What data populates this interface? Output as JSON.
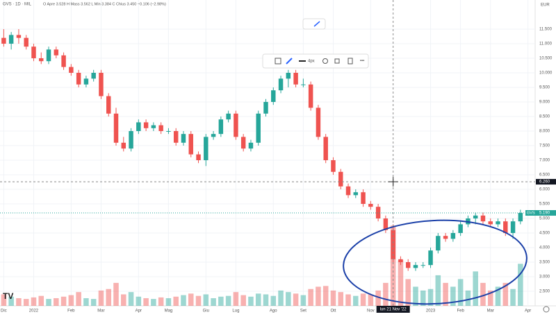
{
  "chart_data": {
    "type": "candlestick",
    "header": {
      "ticker": "GVS · 1D · MIL",
      "ohlc_text": "O Apre 3.528 H Mass 3.562 L Min 3.384 C Chius 3.450 −0.106 (−2.98%)"
    },
    "currency": "EUR",
    "toolbar": {
      "line_width": "4px"
    },
    "up_color": "#26a69a",
    "down_color": "#ef5350",
    "categories": [
      "Dic",
      null,
      null,
      null,
      "2022",
      null,
      null,
      null,
      null,
      "Feb",
      null,
      null,
      null,
      "Mar",
      null,
      null,
      null,
      null,
      "Apr",
      null,
      null,
      null,
      "Mag",
      null,
      null,
      null,
      null,
      "Giu",
      null,
      null,
      null,
      "Lug",
      null,
      null,
      null,
      null,
      "Ago",
      null,
      null,
      null,
      "Set",
      null,
      null,
      null,
      "Ott",
      null,
      null,
      null,
      null,
      "Nov",
      null,
      null,
      null,
      null,
      null,
      null,
      null,
      "2023",
      null,
      null,
      null,
      "Feb",
      null,
      null,
      null,
      "Mar",
      null,
      null,
      null,
      null,
      "Apr"
    ],
    "open": [
      11.2,
      11.0,
      11.3,
      11.2,
      10.9,
      10.5,
      10.4,
      10.8,
      10.6,
      10.2,
      10.0,
      9.6,
      9.8,
      10.0,
      9.2,
      8.6,
      7.6,
      7.4,
      8.0,
      8.3,
      8.1,
      8.2,
      8.0,
      8.0,
      7.6,
      7.9,
      7.2,
      7.0,
      7.8,
      7.9,
      8.4,
      8.6,
      7.8,
      7.4,
      7.6,
      8.6,
      9.0,
      9.4,
      9.8,
      10.0,
      9.6,
      9.6,
      8.8,
      7.8,
      7.0,
      6.6,
      6.1,
      5.8,
      5.9,
      5.5,
      5.4,
      5.0,
      4.6,
      3.6,
      3.5,
      3.3,
      3.4,
      3.4,
      3.9,
      4.4,
      4.3,
      4.5,
      4.8,
      5.0,
      5.1,
      4.9,
      4.8,
      4.9,
      4.5,
      4.9,
      null
    ],
    "high": [
      11.5,
      11.4,
      11.5,
      11.3,
      11.0,
      10.7,
      10.9,
      10.9,
      10.7,
      10.3,
      10.1,
      9.9,
      10.1,
      10.1,
      9.3,
      8.8,
      7.8,
      8.1,
      8.4,
      8.4,
      8.3,
      8.3,
      8.1,
      8.1,
      8.0,
      8.0,
      7.3,
      7.9,
      8.0,
      8.5,
      8.7,
      8.7,
      7.9,
      7.7,
      8.7,
      9.1,
      9.5,
      9.9,
      10.1,
      10.1,
      9.8,
      9.7,
      8.9,
      7.9,
      7.1,
      6.7,
      6.2,
      6.0,
      6.0,
      5.6,
      5.5,
      5.1,
      4.8,
      3.7,
      3.6,
      3.5,
      3.5,
      4.0,
      4.5,
      4.5,
      4.6,
      4.9,
      5.1,
      5.2,
      5.2,
      5.0,
      5.0,
      5.0,
      5.0,
      5.3,
      null
    ],
    "low": [
      10.9,
      10.8,
      11.0,
      10.8,
      10.4,
      10.3,
      10.3,
      10.5,
      10.1,
      9.9,
      9.5,
      9.5,
      9.7,
      9.1,
      8.5,
      7.5,
      7.3,
      7.3,
      7.9,
      8.0,
      8.0,
      7.9,
      7.9,
      7.5,
      7.5,
      7.1,
      6.9,
      6.8,
      7.7,
      7.8,
      8.3,
      7.7,
      7.3,
      7.3,
      7.5,
      8.5,
      8.9,
      9.3,
      9.5,
      9.5,
      9.5,
      8.7,
      7.7,
      6.9,
      6.5,
      6.0,
      5.7,
      5.7,
      5.4,
      5.3,
      4.9,
      4.5,
      3.5,
      3.4,
      3.2,
      3.2,
      3.3,
      3.3,
      3.8,
      4.2,
      4.2,
      4.4,
      4.7,
      4.8,
      4.8,
      4.7,
      4.7,
      4.4,
      4.3,
      4.8,
      null
    ],
    "close": [
      11.0,
      11.3,
      11.2,
      10.9,
      10.5,
      10.4,
      10.8,
      10.6,
      10.2,
      10.0,
      9.6,
      9.8,
      10.0,
      9.2,
      8.6,
      7.6,
      7.4,
      8.0,
      8.3,
      8.1,
      8.2,
      8.0,
      8.0,
      7.6,
      7.9,
      7.2,
      7.0,
      7.8,
      7.9,
      8.4,
      8.6,
      7.8,
      7.4,
      7.6,
      8.6,
      9.0,
      9.4,
      9.8,
      10.0,
      9.6,
      9.6,
      8.8,
      7.8,
      7.0,
      6.6,
      6.1,
      5.8,
      5.9,
      5.5,
      5.4,
      5.0,
      4.6,
      3.6,
      3.5,
      3.3,
      3.4,
      3.4,
      3.9,
      4.4,
      4.3,
      4.5,
      4.8,
      5.0,
      5.1,
      4.9,
      4.8,
      4.9,
      4.5,
      4.9,
      5.19,
      null
    ],
    "volume": [
      150000,
      120000,
      100000,
      90000,
      110000,
      130000,
      90000,
      100000,
      120000,
      140000,
      180000,
      100000,
      90000,
      200000,
      220000,
      300000,
      150000,
      180000,
      120000,
      100000,
      90000,
      110000,
      100000,
      120000,
      140000,
      160000,
      130000,
      150000,
      100000,
      120000,
      130000,
      180000,
      140000,
      120000,
      160000,
      150000,
      130000,
      200000,
      180000,
      160000,
      140000,
      220000,
      250000,
      260000,
      200000,
      180000,
      150000,
      130000,
      160000,
      150000,
      200000,
      300000,
      1050000,
      600000,
      350000,
      250000,
      200000,
      220000,
      400000,
      300000,
      250000,
      350000,
      200000,
      450000,
      300000,
      200000,
      250000,
      300000,
      220000,
      550000,
      null
    ],
    "ylim": [
      2.0,
      12.5
    ],
    "y2lim": [
      0,
      4000000
    ],
    "yticks": [
      {
        "value": 11.5,
        "label": "11.500"
      },
      {
        "value": 11,
        "label": "11.000"
      },
      {
        "value": 10.5,
        "label": "10.500"
      },
      {
        "value": 10,
        "label": "10.000"
      },
      {
        "value": 9.5,
        "label": "9.500"
      },
      {
        "value": 9,
        "label": "9.000"
      },
      {
        "value": 8.5,
        "label": "8.500"
      },
      {
        "value": 8,
        "label": "8.000"
      },
      {
        "value": 7.5,
        "label": "7.500"
      },
      {
        "value": 7,
        "label": "7.000"
      },
      {
        "value": 6.5,
        "label": "6.500"
      },
      {
        "value": 6,
        "label": "6.000"
      },
      {
        "value": 5.5,
        "label": "5.500"
      },
      {
        "value": 5,
        "label": "5.000"
      },
      {
        "value": 4.5,
        "label": "4.500"
      },
      {
        "value": 4,
        "label": "4.000"
      },
      {
        "value": 3.5,
        "label": "3.500"
      },
      {
        "value": 3,
        "label": "3.000"
      },
      {
        "value": 2.5,
        "label": "2.500"
      }
    ],
    "grid": true,
    "last_price": {
      "name": "GVS",
      "value": 5.19,
      "label": "5.190"
    },
    "crosshair": {
      "price": 6.26,
      "price_label": "6.260",
      "date_label": "lun 21 Nov '22"
    }
  }
}
